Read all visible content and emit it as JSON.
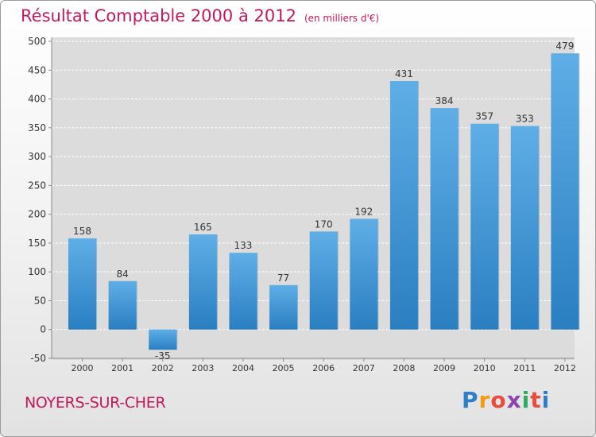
{
  "header": {
    "title": "Résultat Comptable 2000 à 2012",
    "unit": "(en milliers d'€)"
  },
  "footer": {
    "commune": "NOYERS-SUR-CHER",
    "logo_letters": [
      "P",
      "r",
      "o",
      "x",
      "i",
      "t",
      "i"
    ],
    "logo_colors": [
      "#2e7fc9",
      "#f39c12",
      "#e74c3c",
      "#8e44ad",
      "#27ae60",
      "#e74c3c",
      "#2e7fc9"
    ]
  },
  "colors": {
    "bar_top": "#5faee6",
    "bar_bottom": "#2a7fc1",
    "bar_side": "#1f6aa6",
    "title": "#c2185b",
    "grid": "#ffffff"
  },
  "chart_data": {
    "type": "bar",
    "title": "Résultat Comptable 2000 à 2012",
    "subtitle": "(en milliers d'€)",
    "xlabel": "",
    "ylabel": "",
    "categories": [
      "2000",
      "2001",
      "2002",
      "2003",
      "2004",
      "2005",
      "2006",
      "2007",
      "2008",
      "2009",
      "2010",
      "2011",
      "2012"
    ],
    "values": [
      158,
      84,
      -35,
      165,
      133,
      77,
      170,
      192,
      431,
      384,
      357,
      353,
      479
    ],
    "labels": [
      "158",
      "84",
      "-35",
      "165",
      "133",
      "77",
      "170",
      "192",
      "431",
      "384",
      "357",
      "353",
      "479"
    ],
    "ylim": [
      -50,
      500
    ],
    "yticks": [
      -50,
      0,
      50,
      100,
      150,
      200,
      250,
      300,
      350,
      400,
      450,
      500
    ],
    "grid": true,
    "legend": "none"
  }
}
